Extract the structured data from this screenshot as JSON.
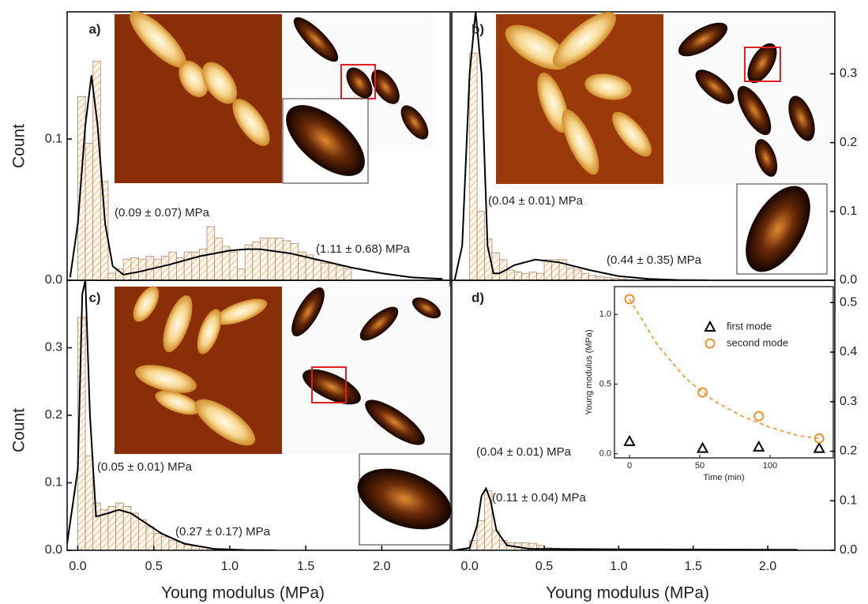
{
  "chart_data": [
    {
      "type": "histogram",
      "label": "a)",
      "ylabel": "Count",
      "yaxis_side": "left",
      "color": "#e49a4a",
      "fit_color": "#000000",
      "xlim": [
        -0.07,
        2.45
      ],
      "ylim": [
        0,
        0.19
      ],
      "yticks": [
        {
          "value": 0,
          "label": "0.0"
        },
        0.1
      ],
      "bins": [
        0,
        0.05,
        0.1,
        0.15,
        0.2,
        0.25,
        0.3,
        0.35,
        0.4,
        0.45,
        0.5,
        0.55,
        0.6,
        0.65,
        0.7,
        0.75,
        0.8,
        0.85,
        0.9,
        0.95,
        1,
        1.05,
        1.1,
        1.15,
        1.2,
        1.25,
        1.3,
        1.35,
        1.4,
        1.45,
        1.5,
        1.55,
        1.6,
        1.65,
        1.7,
        1.75,
        1.8
      ],
      "counts": [
        0.13,
        0.097,
        0.155,
        0.07,
        0.005,
        0.008,
        0.015,
        0.016,
        0.015,
        0.017,
        0.015,
        0.017,
        0.02,
        0.016,
        0.02,
        0.02,
        0.022,
        0.038,
        0.03,
        0.024,
        0.02,
        0.008,
        0.025,
        0.027,
        0.03,
        0.03,
        0.03,
        0.028,
        0.026,
        0.02,
        0.018,
        0.014,
        0.012,
        0.012,
        0.01,
        0.008
      ],
      "fit": {
        "x": [
          -0.05,
          0,
          0.05,
          0.09,
          0.13,
          0.18,
          0.23,
          0.3,
          0.4,
          0.6,
          0.8,
          1.0,
          1.11,
          1.2,
          1.4,
          1.6,
          1.8,
          2.0,
          2.2,
          2.4
        ],
        "values": [
          0.002,
          0.04,
          0.11,
          0.145,
          0.11,
          0.04,
          0.01,
          0.004,
          0.006,
          0.011,
          0.017,
          0.021,
          0.022,
          0.022,
          0.019,
          0.014,
          0.009,
          0.005,
          0.002,
          0.001
        ]
      },
      "annotations": [
        "(0.09 ± 0.07) MPa",
        "(1.11 ± 0.68) MPa"
      ]
    },
    {
      "type": "histogram",
      "label": "b)",
      "yaxis_side": "right",
      "color": "#e49a4a",
      "fit_color": "#000000",
      "xlim": [
        -0.12,
        2.45
      ],
      "ylim": [
        0,
        0.39
      ],
      "yticks": [
        {
          "value": 0,
          "label": "0.0"
        },
        0.1,
        0.2,
        0.3
      ],
      "bins": [
        0,
        0.05,
        0.1,
        0.15,
        0.2,
        0.25,
        0.3,
        0.35,
        0.4,
        0.45,
        0.5,
        0.55,
        0.6,
        0.65,
        0.7,
        0.75,
        0.8,
        0.85,
        0.9,
        0.95,
        1,
        1.05,
        1.1
      ],
      "counts": [
        0.33,
        0.1,
        0.06,
        0.04,
        0.03,
        0.015,
        0.012,
        0.01,
        0.012,
        0.01,
        0.03,
        0.03,
        0.03,
        0.018,
        0.015,
        0.01,
        0.007,
        0.005,
        0.004,
        0.003,
        0.002,
        0.001
      ],
      "fit": {
        "x": [
          -0.1,
          -0.05,
          0,
          0.04,
          0.08,
          0.12,
          0.16,
          0.2,
          0.3,
          0.44,
          0.6,
          0.8,
          1.0,
          1.2,
          1.4,
          1.6
        ],
        "values": [
          0.001,
          0.05,
          0.3,
          0.39,
          0.3,
          0.05,
          0.01,
          0.01,
          0.022,
          0.03,
          0.026,
          0.015,
          0.006,
          0.002,
          0.0005,
          0
        ]
      },
      "annotations": [
        "(0.04 ± 0.01) MPa",
        "(0.44 ± 0.35) MPa"
      ]
    },
    {
      "type": "histogram",
      "label": "c)",
      "ylabel": "Count",
      "xlabel": "Young modulus (MPa)",
      "yaxis_side": "left",
      "color": "#e49a4a",
      "fit_color": "#000000",
      "xlim": [
        -0.07,
        2.45
      ],
      "ylim": [
        0,
        0.4
      ],
      "yticks": [
        {
          "value": 0,
          "label": "0.0"
        },
        0.1,
        0.2,
        0.3
      ],
      "xticks": [
        {
          "value": 0,
          "label": "0.0"
        },
        0.5,
        {
          "value": 1,
          "label": "1.0"
        },
        1.5,
        {
          "value": 2,
          "label": "2.0"
        }
      ],
      "bins": [
        0,
        0.05,
        0.1,
        0.15,
        0.2,
        0.25,
        0.3,
        0.35,
        0.4,
        0.45,
        0.5,
        0.55,
        0.6,
        0.65,
        0.7,
        0.75,
        0.8,
        0.85,
        0.9
      ],
      "counts": [
        0.345,
        0.14,
        0.07,
        0.06,
        0.065,
        0.07,
        0.065,
        0.055,
        0.045,
        0.035,
        0.025,
        0.02,
        0.015,
        0.012,
        0.008,
        0.006,
        0.005,
        0.003
      ],
      "fit": {
        "x": [
          -0.07,
          0,
          0.03,
          0.05,
          0.08,
          0.12,
          0.2,
          0.27,
          0.35,
          0.45,
          0.55,
          0.7,
          0.9,
          1.1,
          1.3
        ],
        "values": [
          0.01,
          0.12,
          0.38,
          0.4,
          0.2,
          0.05,
          0.055,
          0.06,
          0.055,
          0.04,
          0.025,
          0.01,
          0.002,
          0.0005,
          0
        ]
      },
      "annotations": [
        "(0.05 ± 0.01) MPa",
        "(0.27 ± 0.17) MPa"
      ]
    },
    {
      "type": "histogram",
      "label": "d)",
      "xlabel": "Young modulus (MPa)",
      "yaxis_side": "right",
      "color": "#e49a4a",
      "fit_color": "#000000",
      "xlim": [
        -0.12,
        2.45
      ],
      "ylim": [
        0,
        0.545
      ],
      "yticks": [
        {
          "value": 0,
          "label": "0.0"
        },
        0.1,
        0.2,
        0.3,
        0.4,
        0.5
      ],
      "xticks": [
        {
          "value": 0,
          "label": "0.0"
        },
        0.5,
        {
          "value": 1,
          "label": "1.0"
        },
        1.5,
        {
          "value": 2,
          "label": "2.0"
        }
      ],
      "bins": [
        0,
        0.05,
        0.1,
        0.15,
        0.2,
        0.25,
        0.3,
        0.35,
        0.4,
        0.45,
        0.5,
        0.55,
        0.6,
        0.65,
        0.7,
        0.75,
        0.8,
        0.85,
        0.9,
        0.95,
        1
      ],
      "counts": [
        0.02,
        0.06,
        0.12,
        0.04,
        0.02,
        0.015,
        0.015,
        0.015,
        0.014,
        0.01,
        0.005,
        0.004,
        0.003,
        0.003,
        0.002,
        0.002,
        0.002,
        0.002,
        0.002,
        0.002
      ],
      "fit": {
        "x": [
          -0.1,
          0,
          0.05,
          0.08,
          0.11,
          0.14,
          0.18,
          0.25,
          0.4,
          1.0,
          2.2
        ],
        "values": [
          0,
          0.005,
          0.05,
          0.11,
          0.125,
          0.1,
          0.04,
          0.01,
          0.003,
          0.002,
          0.001
        ]
      },
      "annotations": [
        "(0.04 ± 0.01) MPa",
        "(0.11 ± 0.04) MPa"
      ]
    },
    {
      "type": "scatter",
      "xlabel": "Time (min)",
      "ylabel": "Young modulus (MPa)",
      "xlim": [
        -10.7,
        145
      ],
      "ylim": [
        -0.03,
        1.2
      ],
      "xticks": [
        0,
        50,
        100
      ],
      "yticks": [
        {
          "value": 0,
          "label": "0.0"
        },
        0.5,
        {
          "value": 1,
          "label": "1.0"
        }
      ],
      "x": [
        0,
        52,
        92,
        135
      ],
      "series": [
        {
          "name": "first mode",
          "color": "#000000",
          "marker": "triangle",
          "values": [
            0.09,
            0.04,
            0.05,
            0.04
          ]
        },
        {
          "name": "second mode",
          "color": "#e8922e",
          "marker": "circle",
          "values": [
            1.11,
            0.44,
            0.27,
            0.11
          ]
        }
      ],
      "fit": {
        "color": "#e8922e",
        "x": [
          0,
          20,
          40,
          60,
          80,
          100,
          120,
          135
        ],
        "values": [
          1.11,
          0.78,
          0.54,
          0.38,
          0.27,
          0.19,
          0.13,
          0.11
        ]
      }
    }
  ]
}
